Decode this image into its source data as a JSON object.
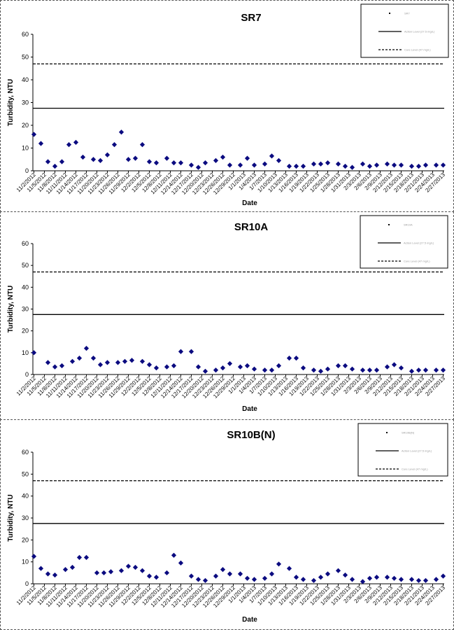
{
  "chart_data": [
    {
      "type": "scatter",
      "title": "SR7",
      "xlabel": "Date",
      "ylabel": "Turbidity, NTU",
      "ylim": [
        0,
        60
      ],
      "yticks": [
        0,
        10,
        20,
        30,
        40,
        50,
        60
      ],
      "xtick_labels": [
        "11/2/2012",
        "11/5/2012",
        "11/8/2012",
        "11/11/2012",
        "11/14/2012",
        "11/17/2012",
        "11/20/2012",
        "11/23/2012",
        "11/26/2012",
        "11/29/2012",
        "12/2/2012",
        "12/5/2012",
        "12/8/2012",
        "12/11/2012",
        "12/14/2012",
        "12/17/2012",
        "12/20/2012",
        "12/23/2012",
        "12/26/2012",
        "12/29/2012",
        "1/1/2013",
        "1/4/2013",
        "1/7/2013",
        "1/10/2013",
        "1/13/2013",
        "1/16/2013",
        "1/19/2013",
        "1/22/2013",
        "1/25/2013",
        "1/28/2013",
        "1/31/2013",
        "2/3/2013",
        "2/6/2013",
        "2/9/2013",
        "2/12/2013",
        "2/15/2013",
        "2/18/2013",
        "2/21/2013",
        "2/24/2013",
        "2/27/2013"
      ],
      "legend": {
        "placement": "top-right",
        "entries": [
          "SR7",
          "Action Level (27.5 mg/L)",
          "Cure Level (47 mg/L)"
        ]
      },
      "reference_lines": [
        {
          "y": 27.5,
          "style": "solid"
        },
        {
          "y": 47,
          "style": "dashed"
        }
      ],
      "colors": {
        "marker": "#0b0b80",
        "line": "#000000"
      },
      "series": [
        {
          "x": [
            "11/2/2012",
            "11/4/2012",
            "11/6/2012",
            "11/8/2012",
            "11/10/2012",
            "11/12/2012",
            "11/14/2012",
            "11/16/2012",
            "11/19/2012",
            "11/21/2012",
            "11/23/2012",
            "11/25/2012",
            "11/27/2012",
            "11/29/2012",
            "12/1/2012",
            "12/3/2012",
            "12/5/2012",
            "12/7/2012",
            "12/10/2012",
            "12/12/2012",
            "12/14/2012",
            "12/17/2012",
            "12/19/2012",
            "12/21/2012",
            "12/24/2012",
            "12/26/2012",
            "12/28/2012",
            "12/31/2012",
            "1/2/2013",
            "1/4/2013",
            "1/7/2013",
            "1/9/2013",
            "1/11/2013",
            "1/14/2013",
            "1/16/2013",
            "1/18/2013",
            "1/21/2013",
            "1/23/2013",
            "1/25/2013",
            "1/28/2013",
            "1/30/2013",
            "2/1/2013",
            "2/4/2013",
            "2/6/2013",
            "2/8/2013",
            "2/11/2013",
            "2/13/2013",
            "2/15/2013",
            "2/18/2013",
            "2/20/2013",
            "2/22/2013",
            "2/25/2013",
            "2/27/2013"
          ],
          "y": [
            16,
            12,
            4,
            2,
            4,
            11.5,
            12.5,
            6,
            5,
            4.5,
            7,
            11.5,
            17,
            5,
            5.5,
            11.5,
            4,
            3.5,
            5.5,
            3.5,
            3.5,
            2.5,
            1.5,
            3.5,
            4.5,
            6,
            2.5,
            2.5,
            5.5,
            2.5,
            3,
            6.5,
            4.5,
            2,
            2,
            2,
            3,
            3,
            3.5,
            3,
            2,
            1.5,
            3,
            2,
            2.5,
            3,
            2.5,
            2.5,
            2,
            2,
            2.5,
            2.5,
            2.5
          ]
        }
      ]
    },
    {
      "type": "scatter",
      "title": "SR10A",
      "xlabel": "Date",
      "ylabel": "Turbidity, NTU",
      "ylim": [
        0,
        60
      ],
      "yticks": [
        0,
        10,
        20,
        30,
        40,
        50,
        60
      ],
      "xtick_labels": [
        "11/2/2012",
        "11/5/2012",
        "11/8/2012",
        "11/11/2012",
        "11/14/2012",
        "11/17/2012",
        "11/20/2012",
        "11/23/2012",
        "11/26/2012",
        "11/29/2012",
        "12/2/2012",
        "12/5/2012",
        "12/8/2012",
        "12/11/2012",
        "12/14/2012",
        "12/17/2012",
        "12/20/2012",
        "12/23/2012",
        "12/26/2012",
        "12/29/2012",
        "1/1/2013",
        "1/4/2013",
        "1/7/2013",
        "1/10/2013",
        "1/13/2013",
        "1/16/2013",
        "1/19/2013",
        "1/22/2013",
        "1/25/2013",
        "1/28/2013",
        "1/31/2013",
        "2/3/2013",
        "2/6/2013",
        "2/9/2013",
        "2/12/2013",
        "2/15/2013",
        "2/18/2013",
        "2/21/2013",
        "2/24/2013",
        "2/27/2013"
      ],
      "legend": {
        "placement": "top-right",
        "entries": [
          "SR10A",
          "Action Level (27.5 mg/L)",
          "Cure Level (47 mg/L)"
        ]
      },
      "reference_lines": [
        {
          "y": 27.5,
          "style": "solid"
        },
        {
          "y": 47,
          "style": "dashed"
        }
      ],
      "colors": {
        "marker": "#0b0b80",
        "line": "#000000"
      },
      "series": [
        {
          "x": [
            "11/2/2012",
            "11/6/2012",
            "11/8/2012",
            "11/10/2012",
            "11/13/2012",
            "11/15/2012",
            "11/17/2012",
            "11/19/2012",
            "11/21/2012",
            "11/23/2012",
            "11/26/2012",
            "11/28/2012",
            "11/30/2012",
            "12/3/2012",
            "12/5/2012",
            "12/7/2012",
            "12/10/2012",
            "12/12/2012",
            "12/14/2012",
            "12/17/2012",
            "12/19/2012",
            "12/21/2012",
            "12/24/2012",
            "12/26/2012",
            "12/28/2012",
            "12/31/2012",
            "1/2/2013",
            "1/4/2013",
            "1/7/2013",
            "1/9/2013",
            "1/11/2013",
            "1/14/2013",
            "1/16/2013",
            "1/18/2013",
            "1/21/2013",
            "1/23/2013",
            "1/25/2013",
            "1/28/2013",
            "1/30/2013",
            "2/1/2013",
            "2/4/2013",
            "2/6/2013",
            "2/8/2013",
            "2/11/2013",
            "2/13/2013",
            "2/15/2013",
            "2/18/2013",
            "2/20/2013",
            "2/22/2013",
            "2/25/2013",
            "2/27/2013"
          ],
          "y": [
            10,
            5.5,
            3.5,
            4,
            6,
            7.5,
            12,
            7.5,
            4.5,
            5.5,
            5.5,
            6,
            6.5,
            6,
            4.5,
            3,
            3.5,
            4,
            10.5,
            10.5,
            3.5,
            1.5,
            2,
            3,
            5,
            3.5,
            4,
            2.5,
            2,
            2,
            4,
            7.5,
            7.5,
            3,
            2,
            1.5,
            2.5,
            4,
            4,
            2.5,
            2,
            2,
            2,
            3.5,
            4.5,
            3,
            1.5,
            2,
            2,
            2,
            2
          ]
        }
      ]
    },
    {
      "type": "scatter",
      "title": "SR10B(N)",
      "xlabel": "Date",
      "ylabel": "Turbidity, NTU",
      "ylim": [
        0,
        60
      ],
      "yticks": [
        0,
        10,
        20,
        30,
        40,
        50,
        60
      ],
      "xtick_labels": [
        "11/2/2012",
        "11/5/2012",
        "11/8/2012",
        "11/11/2012",
        "11/14/2012",
        "11/17/2012",
        "11/20/2012",
        "11/23/2012",
        "11/26/2012",
        "11/29/2012",
        "12/2/2012",
        "12/5/2012",
        "12/8/2012",
        "12/11/2012",
        "12/14/2012",
        "12/17/2012",
        "12/20/2012",
        "12/23/2012",
        "12/26/2012",
        "12/29/2012",
        "1/1/2013",
        "1/4/2013",
        "1/7/2013",
        "1/10/2013",
        "1/13/2013",
        "1/16/2013",
        "1/19/2013",
        "1/22/2013",
        "1/25/2013",
        "1/28/2013",
        "1/31/2013",
        "2/3/2013",
        "2/6/2013",
        "2/9/2013",
        "2/12/2013",
        "2/15/2013",
        "2/18/2013",
        "2/21/2013",
        "2/24/2013",
        "2/27/2013"
      ],
      "legend": {
        "placement": "top-right",
        "entries": [
          "SR10B(N)",
          "Action Level (27.5 mg/L)",
          "Cure Level (47 mg/L)"
        ]
      },
      "reference_lines": [
        {
          "y": 27.5,
          "style": "solid"
        },
        {
          "y": 47,
          "style": "dashed"
        }
      ],
      "colors": {
        "marker": "#0b0b80",
        "line": "#000000"
      },
      "series": [
        {
          "x": [
            "11/2/2012",
            "11/4/2012",
            "11/6/2012",
            "11/8/2012",
            "11/11/2012",
            "11/13/2012",
            "11/15/2012",
            "11/17/2012",
            "11/20/2012",
            "11/22/2012",
            "11/24/2012",
            "11/27/2012",
            "11/29/2012",
            "12/1/2012",
            "12/3/2012",
            "12/5/2012",
            "12/7/2012",
            "12/10/2012",
            "12/12/2012",
            "12/14/2012",
            "12/17/2012",
            "12/19/2012",
            "12/21/2012",
            "12/24/2012",
            "12/26/2012",
            "12/28/2012",
            "12/31/2012",
            "1/2/2013",
            "1/4/2013",
            "1/7/2013",
            "1/9/2013",
            "1/11/2013",
            "1/14/2013",
            "1/16/2013",
            "1/18/2013",
            "1/21/2013",
            "1/23/2013",
            "1/25/2013",
            "1/28/2013",
            "1/30/2013",
            "2/1/2013",
            "2/4/2013",
            "2/6/2013",
            "2/8/2013",
            "2/11/2013",
            "2/13/2013",
            "2/15/2013",
            "2/18/2013",
            "2/20/2013",
            "2/22/2013",
            "2/25/2013",
            "2/27/2013"
          ],
          "y": [
            12.5,
            7,
            4.5,
            4,
            6.5,
            7.5,
            12,
            12,
            5,
            5,
            5.5,
            6,
            8,
            7.5,
            6,
            3.5,
            3,
            5,
            13,
            9.5,
            3.5,
            2,
            1.5,
            3.5,
            6.5,
            4.5,
            4.5,
            2.5,
            2,
            2.5,
            4.5,
            9,
            7,
            3,
            2,
            1.5,
            3,
            4.5,
            6,
            4,
            2,
            1,
            2.5,
            3,
            3,
            2.5,
            2,
            2,
            1.5,
            1.5,
            2,
            3.5
          ]
        }
      ]
    }
  ]
}
